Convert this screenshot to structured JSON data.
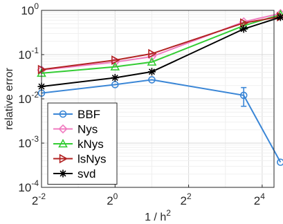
{
  "chart_data": {
    "type": "line",
    "xlabel": "1 / h",
    "xlabel_superscript": "2",
    "ylabel": "relative error",
    "x_scale": "log2",
    "y_scale": "log10",
    "xlim": [
      0.25,
      20
    ],
    "ylim": [
      0.0001,
      1
    ],
    "x_ticks": [
      {
        "value": 0.25,
        "base": "2",
        "exp": "-2"
      },
      {
        "value": 1,
        "base": "2",
        "exp": "0"
      },
      {
        "value": 4,
        "base": "2",
        "exp": "2"
      },
      {
        "value": 16,
        "base": "2",
        "exp": "4"
      }
    ],
    "y_ticks": [
      {
        "value": 0.0001,
        "base": "10",
        "exp": "-4"
      },
      {
        "value": 0.001,
        "base": "10",
        "exp": "-3"
      },
      {
        "value": 0.01,
        "base": "10",
        "exp": "-2"
      },
      {
        "value": 0.1,
        "base": "10",
        "exp": "-1"
      },
      {
        "value": 1,
        "base": "10",
        "exp": "0"
      }
    ],
    "grid": true,
    "legend_position": "bottom-left",
    "series": [
      {
        "name": "BBF",
        "color": "#3a86d6",
        "marker": "circle",
        "x": [
          0.25,
          1,
          2,
          11.3,
          22.6
        ],
        "y": [
          0.0135,
          0.021,
          0.027,
          0.012,
          0.00037
        ],
        "error": [
          {
            "x": 11.3,
            "low": 0.0068,
            "high": 0.018
          }
        ]
      },
      {
        "name": "Nys",
        "color": "#f07cc0",
        "marker": "diamond",
        "x": [
          0.25,
          1,
          2,
          11.3,
          22.6
        ],
        "y": [
          0.045,
          0.068,
          0.09,
          0.55,
          0.85
        ]
      },
      {
        "name": "kNys",
        "color": "#33cc33",
        "marker": "triangle-up",
        "x": [
          0.25,
          1,
          2,
          11.3,
          22.6
        ],
        "y": [
          0.038,
          0.053,
          0.068,
          0.45,
          0.8
        ]
      },
      {
        "name": "lsNys",
        "color": "#b22222",
        "marker": "triangle-right",
        "x": [
          0.25,
          1,
          2,
          11.3,
          22.6
        ],
        "y": [
          0.046,
          0.075,
          0.105,
          0.52,
          0.72
        ]
      },
      {
        "name": "svd",
        "color": "#000000",
        "marker": "asterisk",
        "x": [
          0.25,
          1,
          2,
          11.3,
          22.6
        ],
        "y": [
          0.019,
          0.03,
          0.041,
          0.38,
          0.7
        ]
      }
    ]
  }
}
